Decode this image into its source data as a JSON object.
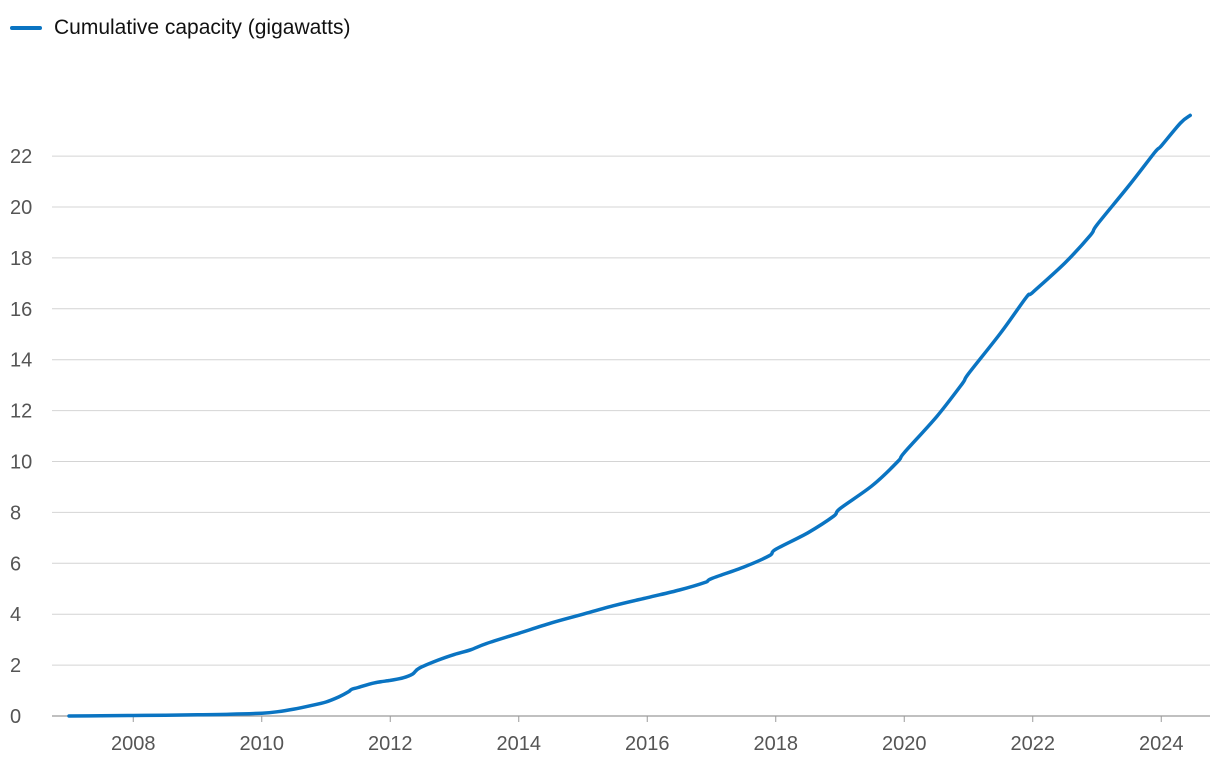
{
  "chart_data": {
    "type": "line",
    "title": "",
    "xlabel": "",
    "ylabel": "",
    "legend": {
      "position": "top-left"
    },
    "grid": true,
    "xlim": [
      2006.75,
      2025.0
    ],
    "ylim": [
      0,
      24
    ],
    "x_ticks": [
      2008,
      2010,
      2012,
      2014,
      2016,
      2018,
      2020,
      2022,
      2024
    ],
    "y_ticks": [
      0,
      2,
      4,
      6,
      8,
      10,
      12,
      14,
      16,
      18,
      20,
      22
    ],
    "series": [
      {
        "name": "Cumulative capacity (gigawatts)",
        "color": "#0a74c2",
        "x": [
          2007.0,
          2007.5,
          2008.0,
          2008.5,
          2009.0,
          2009.5,
          2010.0,
          2010.25,
          2010.5,
          2010.75,
          2011.0,
          2011.2,
          2011.35,
          2011.4,
          2011.5,
          2011.75,
          2012.0,
          2012.2,
          2012.35,
          2012.45,
          2012.75,
          2013.0,
          2013.25,
          2013.5,
          2014.0,
          2014.5,
          2015.0,
          2015.5,
          2016.0,
          2016.5,
          2016.9,
          2017.0,
          2017.5,
          2017.9,
          2018.0,
          2018.5,
          2018.9,
          2019.0,
          2019.5,
          2019.9,
          2020.0,
          2020.5,
          2020.9,
          2021.0,
          2021.5,
          2021.9,
          2022.0,
          2022.5,
          2022.9,
          2023.0,
          2023.5,
          2023.9,
          2024.0,
          2024.3,
          2024.45
        ],
        "values": [
          0.0,
          0.01,
          0.02,
          0.03,
          0.05,
          0.07,
          0.11,
          0.17,
          0.27,
          0.4,
          0.55,
          0.75,
          0.95,
          1.05,
          1.12,
          1.3,
          1.4,
          1.5,
          1.65,
          1.88,
          2.2,
          2.42,
          2.6,
          2.85,
          3.25,
          3.65,
          4.0,
          4.35,
          4.65,
          4.95,
          5.25,
          5.4,
          5.85,
          6.3,
          6.55,
          7.2,
          7.85,
          8.15,
          9.05,
          10.0,
          10.35,
          11.75,
          13.05,
          13.45,
          15.05,
          16.45,
          16.65,
          17.8,
          18.9,
          19.3,
          20.85,
          22.15,
          22.4,
          23.3,
          23.6
        ]
      }
    ]
  }
}
